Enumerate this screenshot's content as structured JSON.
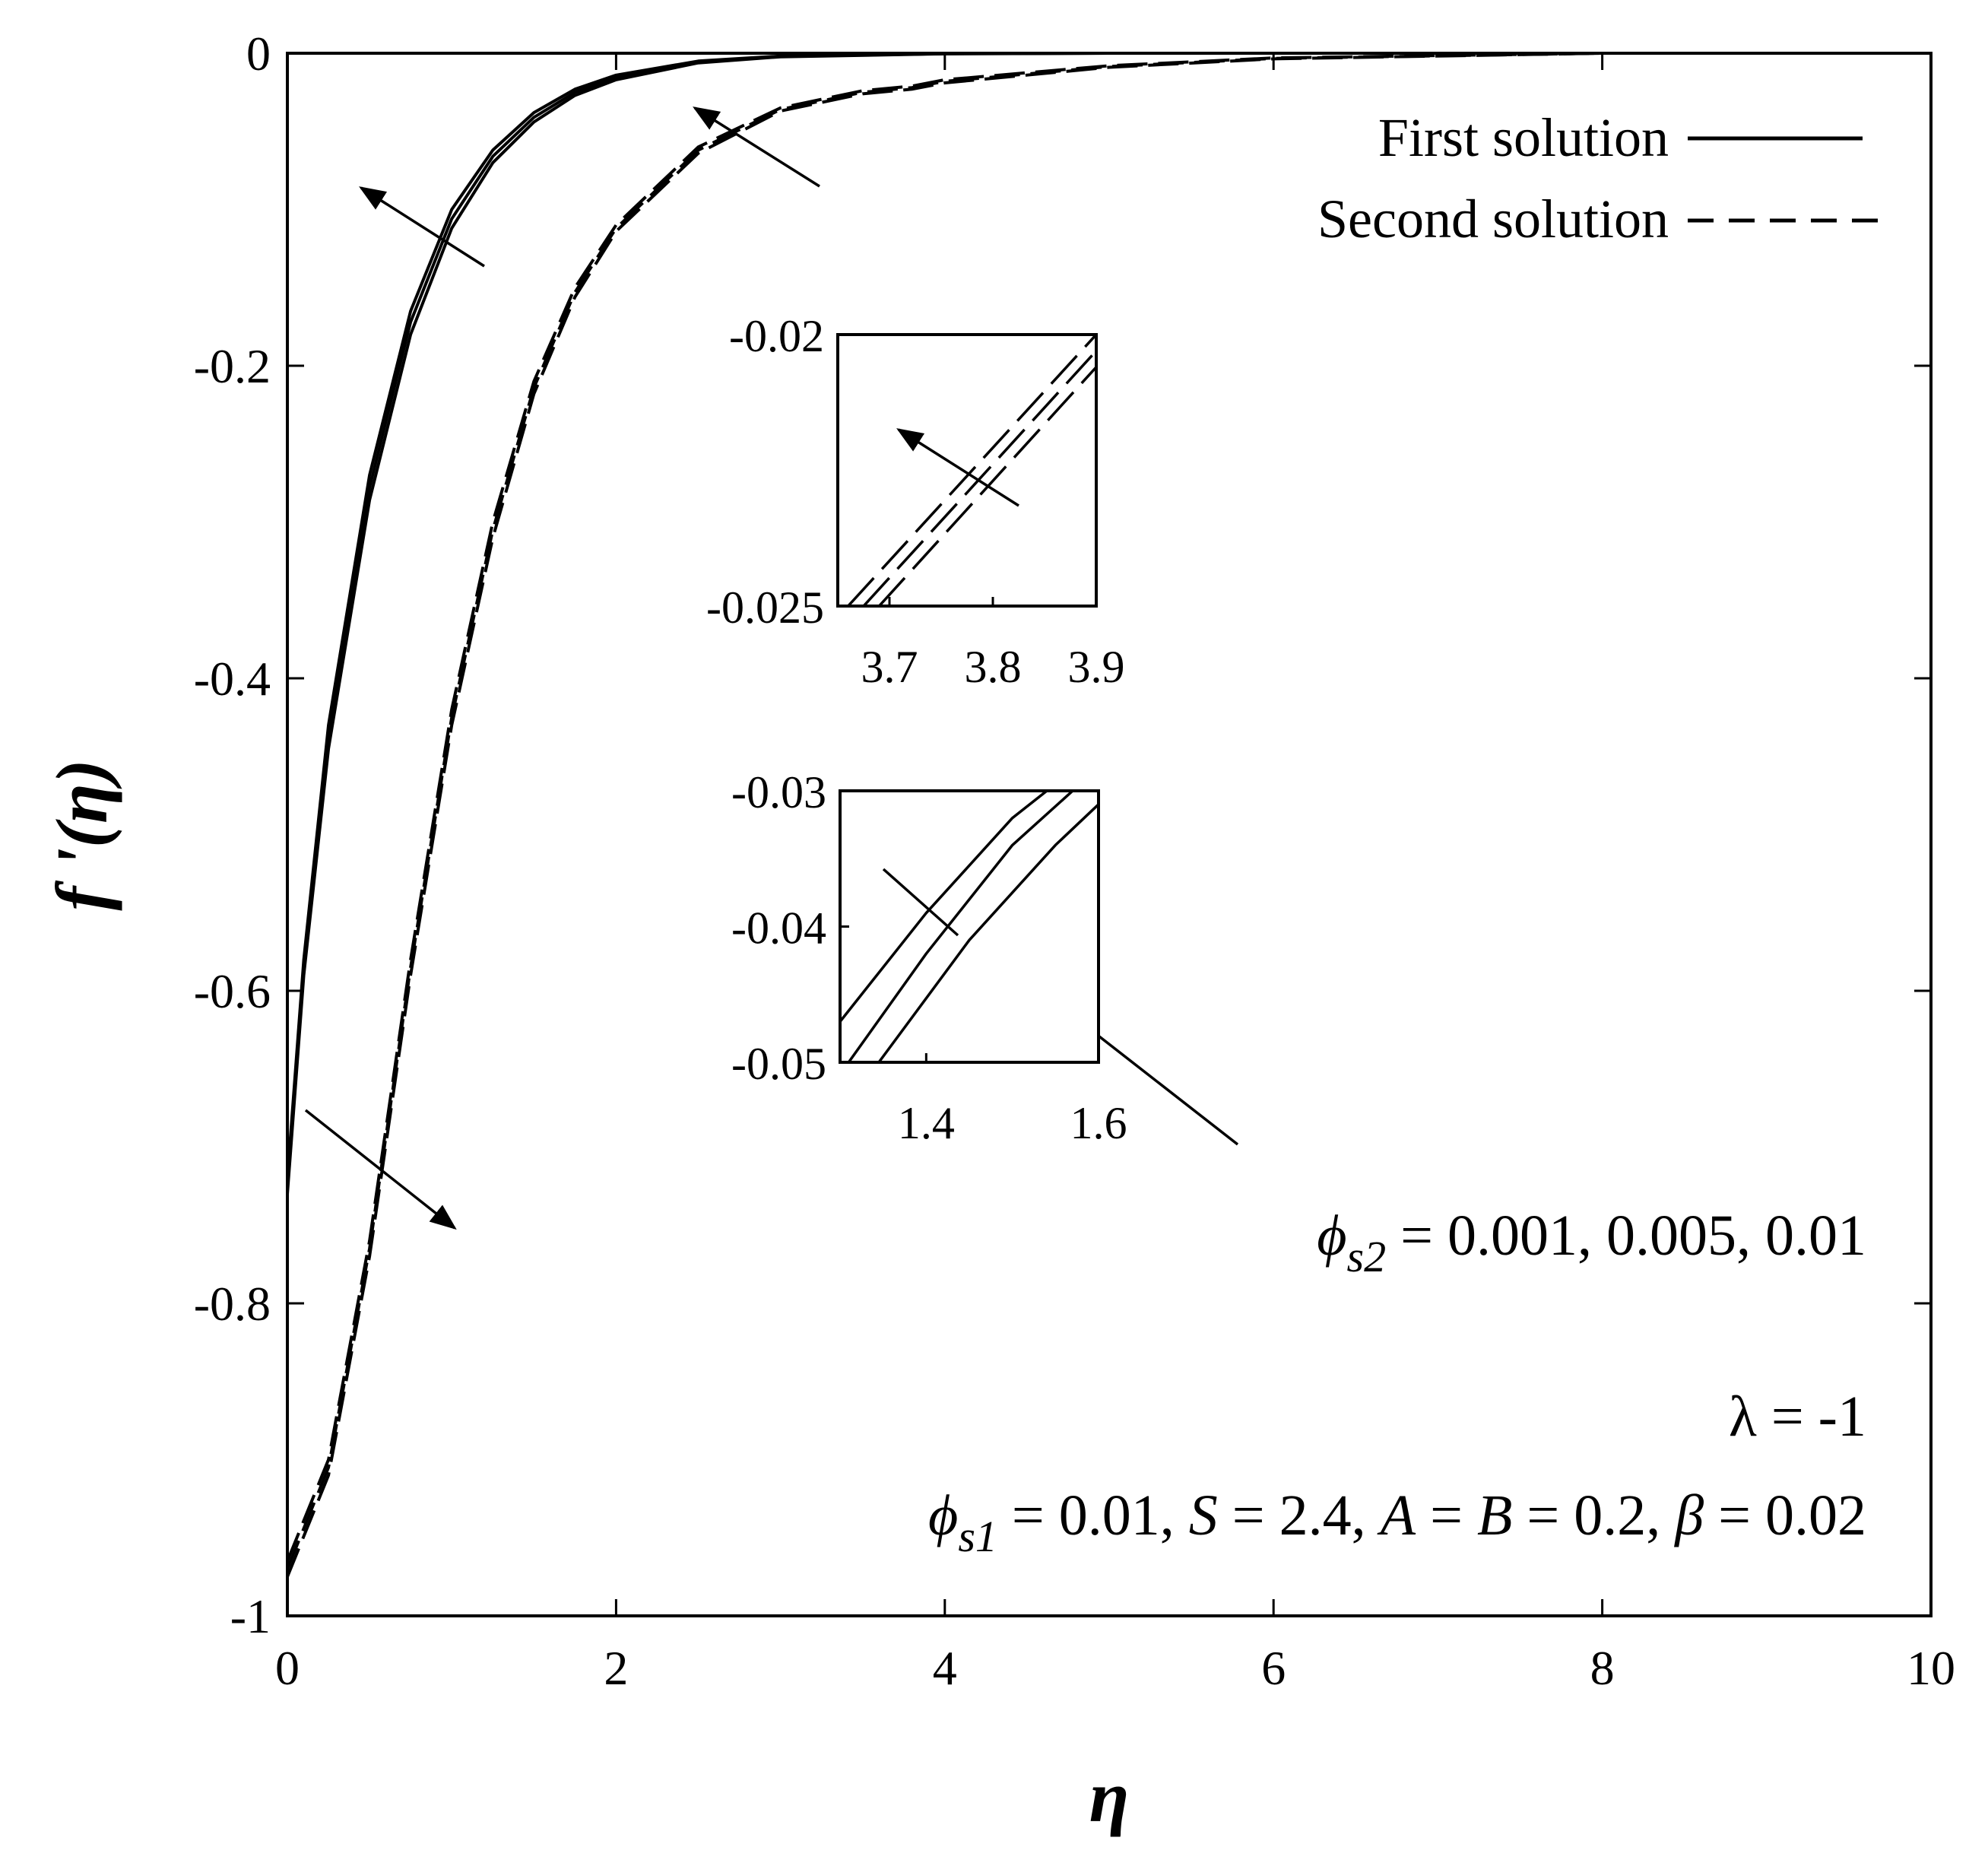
{
  "chart_data": [
    {
      "type": "line",
      "xlabel": "η",
      "ylabel": "f '(η)",
      "xlim": [
        0,
        10
      ],
      "ylim": [
        -1,
        0
      ],
      "x_ticks": [
        "0",
        "2",
        "4",
        "6",
        "8",
        "10"
      ],
      "y_ticks": [
        "0",
        "-0.2",
        "-0.4",
        "-0.6",
        "-0.8",
        "-1"
      ],
      "grid": false,
      "legend": {
        "position": "top-right",
        "entries": [
          {
            "label": "First solution",
            "style": "solid"
          },
          {
            "label": "Second solution",
            "style": "dashed"
          }
        ]
      },
      "series": [
        {
          "name": "First solution",
          "style": "solid",
          "phi_s2": "0.001",
          "x": [
            0,
            0.1,
            0.25,
            0.5,
            0.75,
            1.0,
            1.25,
            1.5,
            1.75,
            2.0,
            2.5,
            3.0,
            4.0,
            5.0,
            6.0,
            8.0,
            10.0
          ],
          "y": [
            -0.72,
            -0.58,
            -0.43,
            -0.27,
            -0.165,
            -0.1,
            -0.062,
            -0.038,
            -0.023,
            -0.014,
            -0.005,
            -0.0018,
            -0.0003,
            0,
            0,
            0,
            0
          ]
        },
        {
          "name": "First solution",
          "style": "solid",
          "phi_s2": "0.005",
          "x": [
            0,
            0.1,
            0.25,
            0.5,
            0.75,
            1.0,
            1.25,
            1.5,
            1.75,
            2.0,
            2.5,
            3.0,
            4.0,
            5.0,
            6.0,
            8.0,
            10.0
          ],
          "y": [
            -0.725,
            -0.585,
            -0.437,
            -0.278,
            -0.172,
            -0.106,
            -0.066,
            -0.041,
            -0.025,
            -0.0155,
            -0.0056,
            -0.002,
            -0.0003,
            0,
            0,
            0,
            0
          ]
        },
        {
          "name": "First solution",
          "style": "solid",
          "phi_s2": "0.01",
          "x": [
            0,
            0.1,
            0.25,
            0.5,
            0.75,
            1.0,
            1.25,
            1.5,
            1.75,
            2.0,
            2.5,
            3.0,
            4.0,
            5.0,
            6.0,
            8.0,
            10.0
          ],
          "y": [
            -0.73,
            -0.59,
            -0.445,
            -0.286,
            -0.18,
            -0.112,
            -0.07,
            -0.044,
            -0.027,
            -0.017,
            -0.0062,
            -0.0023,
            -0.0004,
            0,
            0,
            0,
            0
          ]
        },
        {
          "name": "Second solution",
          "style": "dashed",
          "phi_s2": "0.001",
          "x": [
            0,
            0.25,
            0.5,
            0.75,
            1.0,
            1.25,
            1.5,
            1.75,
            2.0,
            2.5,
            3.0,
            3.5,
            3.8,
            4.0,
            5.0,
            6.0,
            8.0,
            10.0
          ],
          "y": [
            -0.965,
            -0.9,
            -0.76,
            -0.58,
            -0.42,
            -0.3,
            -0.21,
            -0.15,
            -0.11,
            -0.06,
            -0.035,
            -0.024,
            -0.021,
            -0.017,
            -0.008,
            -0.003,
            0,
            0
          ]
        },
        {
          "name": "Second solution",
          "style": "dashed",
          "phi_s2": "0.005",
          "x": [
            0,
            0.25,
            0.5,
            0.75,
            1.0,
            1.25,
            1.5,
            1.75,
            2.0,
            2.5,
            3.0,
            3.5,
            3.8,
            4.0,
            5.0,
            6.0,
            8.0,
            10.0
          ],
          "y": [
            -0.97,
            -0.905,
            -0.765,
            -0.585,
            -0.425,
            -0.305,
            -0.214,
            -0.153,
            -0.112,
            -0.062,
            -0.036,
            -0.025,
            -0.022,
            -0.018,
            -0.0085,
            -0.0033,
            0,
            0
          ]
        },
        {
          "name": "Second solution",
          "style": "dashed",
          "phi_s2": "0.01",
          "x": [
            0,
            0.25,
            0.5,
            0.75,
            1.0,
            1.25,
            1.5,
            1.75,
            2.0,
            2.5,
            3.0,
            3.5,
            3.8,
            4.0,
            5.0,
            6.0,
            8.0,
            10.0
          ],
          "y": [
            -0.975,
            -0.91,
            -0.77,
            -0.59,
            -0.43,
            -0.31,
            -0.218,
            -0.156,
            -0.114,
            -0.064,
            -0.037,
            -0.026,
            -0.023,
            -0.019,
            -0.009,
            -0.0036,
            0,
            0
          ]
        }
      ],
      "annotations": {
        "phi_s2_symbol": "ϕ",
        "phi_s2_sub": "s2",
        "phi_s2_values": " = 0.001, 0.005, 0.01",
        "lambda_text": "λ = -1",
        "params_phi_sub": "s1",
        "params_eq1": " = 0.01, ",
        "params_S": "S",
        "params_eq2": " = 2.4, ",
        "params_A": "A",
        "params_eq3": " = ",
        "params_B": "B",
        "params_eq4": " = 0.2, ",
        "params_beta": "β",
        "params_eq5": " = 0.02"
      }
    },
    {
      "type": "line",
      "name": "inset-upper",
      "xlim": [
        3.65,
        3.9
      ],
      "ylim": [
        -0.025,
        -0.02
      ],
      "x_ticks": [
        "3.7",
        "3.8",
        "3.9"
      ],
      "y_ticks": [
        "-0.02",
        "-0.025"
      ],
      "series": [
        {
          "style": "dashed",
          "x": [
            3.66,
            3.9
          ],
          "y": [
            -0.025,
            -0.02
          ]
        },
        {
          "style": "dashed",
          "x": [
            3.675,
            3.9
          ],
          "y": [
            -0.025,
            -0.0203
          ]
        },
        {
          "style": "dashed",
          "x": [
            3.69,
            3.9
          ],
          "y": [
            -0.025,
            -0.0206
          ]
        }
      ]
    },
    {
      "type": "line",
      "name": "inset-lower",
      "xlim": [
        1.3,
        1.6
      ],
      "ylim": [
        -0.05,
        -0.03
      ],
      "x_ticks": [
        "1.4",
        "1.6"
      ],
      "y_ticks": [
        "-0.03",
        "-0.04",
        "-0.05"
      ],
      "series": [
        {
          "style": "solid",
          "x": [
            1.3,
            1.4,
            1.5,
            1.54
          ],
          "y": [
            -0.047,
            -0.039,
            -0.032,
            -0.03
          ]
        },
        {
          "style": "solid",
          "x": [
            1.31,
            1.4,
            1.5,
            1.57
          ],
          "y": [
            -0.05,
            -0.042,
            -0.034,
            -0.03
          ]
        },
        {
          "style": "solid",
          "x": [
            1.345,
            1.45,
            1.55,
            1.6
          ],
          "y": [
            -0.05,
            -0.041,
            -0.034,
            -0.031
          ]
        }
      ]
    }
  ]
}
